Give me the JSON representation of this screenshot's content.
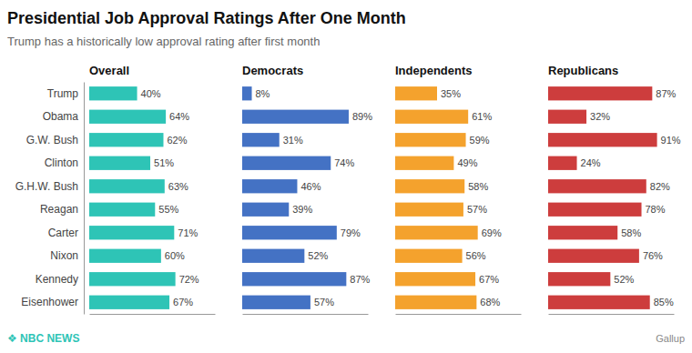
{
  "chart_data": {
    "type": "bar",
    "orientation": "horizontal",
    "title": "Presidential Job Approval Ratings After One Month",
    "subtitle": "Trump has a historically low approval rating after first month",
    "categories": [
      "Trump",
      "Obama",
      "G.W. Bush",
      "Clinton",
      "G.H.W. Bush",
      "Reagan",
      "Carter",
      "Nixon",
      "Kennedy",
      "Eisenhower"
    ],
    "series": [
      {
        "name": "Overall",
        "color": "#2ec4b6",
        "values": [
          40,
          64,
          62,
          51,
          63,
          55,
          71,
          60,
          72,
          67
        ],
        "value_labels": [
          "40%",
          "64%",
          "62%",
          "51%",
          "63%",
          "55%",
          "71%",
          "60%",
          "72%",
          "67%"
        ]
      },
      {
        "name": "Democrats",
        "color": "#4472c4",
        "values": [
          8,
          89,
          31,
          74,
          46,
          39,
          79,
          52,
          87,
          57
        ],
        "value_labels": [
          "8%",
          "89%",
          "31%",
          "74%",
          "46%",
          "39%",
          "79%",
          "52%",
          "87%",
          "57%"
        ]
      },
      {
        "name": "Independents",
        "color": "#f4a22d",
        "values": [
          35,
          61,
          59,
          49,
          58,
          57,
          69,
          56,
          67,
          68
        ],
        "value_labels": [
          "35%",
          "61%",
          "59%",
          "49%",
          "58%",
          "57%",
          "69%",
          "56%",
          "67%",
          "68%"
        ]
      },
      {
        "name": "Republicans",
        "color": "#cd3d3d",
        "values": [
          87,
          32,
          91,
          24,
          82,
          78,
          58,
          76,
          52,
          85
        ],
        "value_labels": [
          "87%",
          "32%",
          "91%",
          "24%",
          "82%",
          "78%",
          "58%",
          "76%",
          "52%",
          "85%"
        ]
      }
    ],
    "xlim": [
      0,
      105
    ],
    "grid": false,
    "data_labels": true,
    "tick_labels": "y",
    "annotations": [
      "❖ NBC NEWS",
      "Gallup"
    ]
  }
}
